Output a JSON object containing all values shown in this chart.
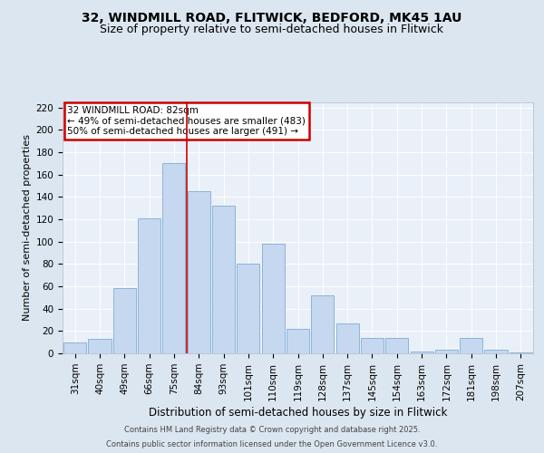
{
  "title_line1": "32, WINDMILL ROAD, FLITWICK, BEDFORD, MK45 1AU",
  "title_line2": "Size of property relative to semi-detached houses in Flitwick",
  "xlabel": "Distribution of semi-detached houses by size in Flitwick",
  "ylabel": "Number of semi-detached properties",
  "categories": [
    "31sqm",
    "40sqm",
    "49sqm",
    "66sqm",
    "75sqm",
    "84sqm",
    "93sqm",
    "101sqm",
    "110sqm",
    "119sqm",
    "128sqm",
    "137sqm",
    "145sqm",
    "154sqm",
    "163sqm",
    "172sqm",
    "181sqm",
    "198sqm",
    "207sqm"
  ],
  "values": [
    10,
    13,
    58,
    121,
    170,
    145,
    132,
    80,
    98,
    22,
    52,
    27,
    14,
    14,
    2,
    3,
    14,
    3,
    1
  ],
  "bar_color": "#c5d8f0",
  "bar_edgecolor": "#8ab4d8",
  "vline_index": 5,
  "vline_color": "#cc0000",
  "annotation_title": "32 WINDMILL ROAD: 82sqm",
  "annotation_line1": "← 49% of semi-detached houses are smaller (483)",
  "annotation_line2": "50% of semi-detached houses are larger (491) →",
  "annotation_box_color": "#cc0000",
  "ylim": [
    0,
    225
  ],
  "yticks": [
    0,
    20,
    40,
    60,
    80,
    100,
    120,
    140,
    160,
    180,
    200,
    220
  ],
  "footer_line1": "Contains HM Land Registry data © Crown copyright and database right 2025.",
  "footer_line2": "Contains public sector information licensed under the Open Government Licence v3.0.",
  "background_color": "#dce6f0",
  "plot_bg_color": "#eaf0f8",
  "title_fontsize": 10,
  "subtitle_fontsize": 9,
  "ylabel_fontsize": 8,
  "xlabel_fontsize": 8.5,
  "tick_fontsize": 7.5,
  "annotation_fontsize": 7.5
}
